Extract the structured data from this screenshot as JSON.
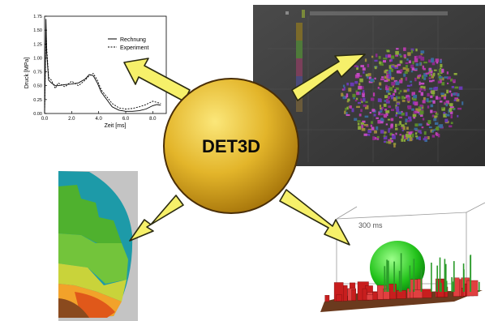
{
  "center": {
    "label": "DET3D"
  },
  "top_left_plot": {
    "xlabel": "Zeit [ms]",
    "ylabel": "Druck [MPa]",
    "x_ticks": [
      "0.0",
      "2.0",
      "4.0",
      "6.0",
      "8.0"
    ],
    "y_ticks": [
      "0.00",
      "0.25",
      "0.50",
      "0.75",
      "1.00",
      "1.25",
      "1.50",
      "1.75"
    ],
    "legend": [
      "Rechnung",
      "Experiment"
    ],
    "xlim": [
      0,
      9
    ],
    "ylim": [
      0,
      1.75
    ]
  },
  "top_right_panel": {
    "title": ""
  },
  "bottom_right_panel": {
    "time_label": "300 ms"
  },
  "colors": {
    "arrow_fill": "#f6f06a",
    "arrow_stroke": "#2a2a10",
    "circle_light": "#f7d84a",
    "circle_dark": "#b8860b",
    "dark_panel": "#3a3a3a"
  },
  "chart_data": {
    "type": "line",
    "xlabel": "Zeit [ms]",
    "ylabel": "Druck [MPa]",
    "xlim": [
      0,
      9
    ],
    "ylim": [
      0,
      1.75
    ],
    "series": [
      {
        "name": "Rechnung",
        "x": [
          0.0,
          0.1,
          0.15,
          0.3,
          0.5,
          0.8,
          1.0,
          1.5,
          2.0,
          2.5,
          3.0,
          3.3,
          3.6,
          3.9,
          4.2,
          4.6,
          5.0,
          5.5,
          6.0,
          6.5,
          7.0,
          7.5,
          8.0,
          8.3,
          8.6
        ],
        "y": [
          0.0,
          1.7,
          1.1,
          0.6,
          0.55,
          0.5,
          0.5,
          0.52,
          0.53,
          0.55,
          0.62,
          0.7,
          0.68,
          0.55,
          0.38,
          0.25,
          0.12,
          0.06,
          0.04,
          0.04,
          0.05,
          0.08,
          0.14,
          0.16,
          0.15
        ]
      },
      {
        "name": "Experiment",
        "x": [
          0.0,
          0.1,
          0.15,
          0.3,
          0.5,
          0.8,
          1.0,
          1.5,
          2.0,
          2.5,
          3.0,
          3.3,
          3.6,
          3.9,
          4.2,
          4.6,
          5.0,
          5.5,
          6.0,
          6.5,
          7.0,
          7.5,
          8.0,
          8.3,
          8.6
        ],
        "y": [
          0.0,
          1.5,
          1.2,
          0.65,
          0.6,
          0.45,
          0.55,
          0.48,
          0.58,
          0.5,
          0.6,
          0.68,
          0.72,
          0.6,
          0.42,
          0.3,
          0.18,
          0.1,
          0.08,
          0.09,
          0.12,
          0.16,
          0.22,
          0.2,
          0.18
        ]
      }
    ]
  }
}
